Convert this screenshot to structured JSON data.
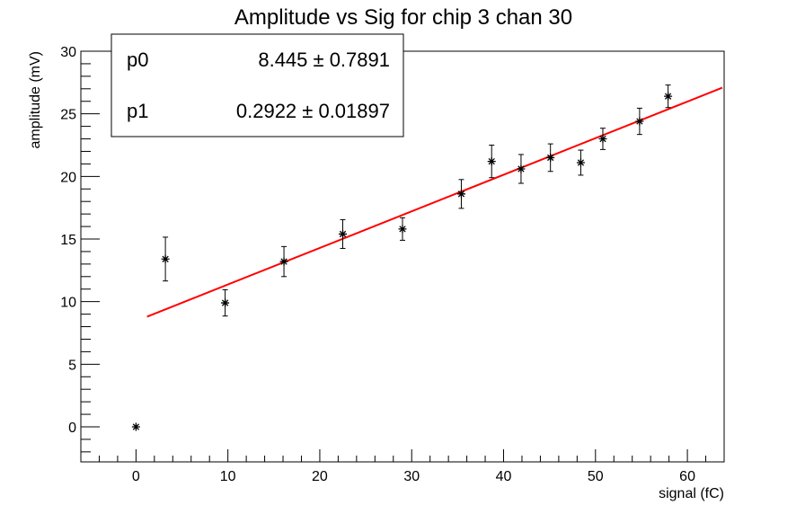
{
  "chart_data": {
    "type": "scatter",
    "title": "Amplitude vs Sig for chip 3 chan 30",
    "xlabel": "signal (fC)",
    "ylabel": "amplitude (mV)",
    "xlim": [
      -6,
      64
    ],
    "ylim": [
      -2.8,
      30
    ],
    "xticks": [
      0,
      10,
      20,
      30,
      40,
      50,
      60
    ],
    "yticks": [
      0,
      5,
      10,
      15,
      20,
      25,
      30
    ],
    "grid": false,
    "series": [
      {
        "marker": "star",
        "color": "#000000",
        "points": [
          {
            "x": 0.0,
            "y": 0.0,
            "err": 0
          },
          {
            "x": 3.2,
            "y": 13.4,
            "err": 1.75
          },
          {
            "x": 9.7,
            "y": 9.9,
            "err": 1.05
          },
          {
            "x": 16.1,
            "y": 13.2,
            "err": 1.2
          },
          {
            "x": 22.5,
            "y": 15.4,
            "err": 1.15
          },
          {
            "x": 29.0,
            "y": 15.8,
            "err": 0.9
          },
          {
            "x": 35.4,
            "y": 18.6,
            "err": 1.15
          },
          {
            "x": 38.7,
            "y": 21.2,
            "err": 1.3
          },
          {
            "x": 41.9,
            "y": 20.6,
            "err": 1.15
          },
          {
            "x": 45.1,
            "y": 21.5,
            "err": 1.1
          },
          {
            "x": 48.4,
            "y": 21.1,
            "err": 1.0
          },
          {
            "x": 50.8,
            "y": 23.0,
            "err": 0.85
          },
          {
            "x": 54.8,
            "y": 24.4,
            "err": 1.05
          },
          {
            "x": 57.9,
            "y": 26.4,
            "err": 0.9
          }
        ]
      }
    ],
    "fit": {
      "color": "#ff0000",
      "p0": 8.445,
      "p1": 0.2922,
      "x_range": [
        1.2,
        63.8
      ]
    },
    "stats": {
      "placement": "top-left",
      "rows": [
        {
          "name": "p0",
          "value": "8.445 ± 0.7891"
        },
        {
          "name": "p1",
          "value": "0.2922 ± 0.01897"
        }
      ]
    }
  }
}
